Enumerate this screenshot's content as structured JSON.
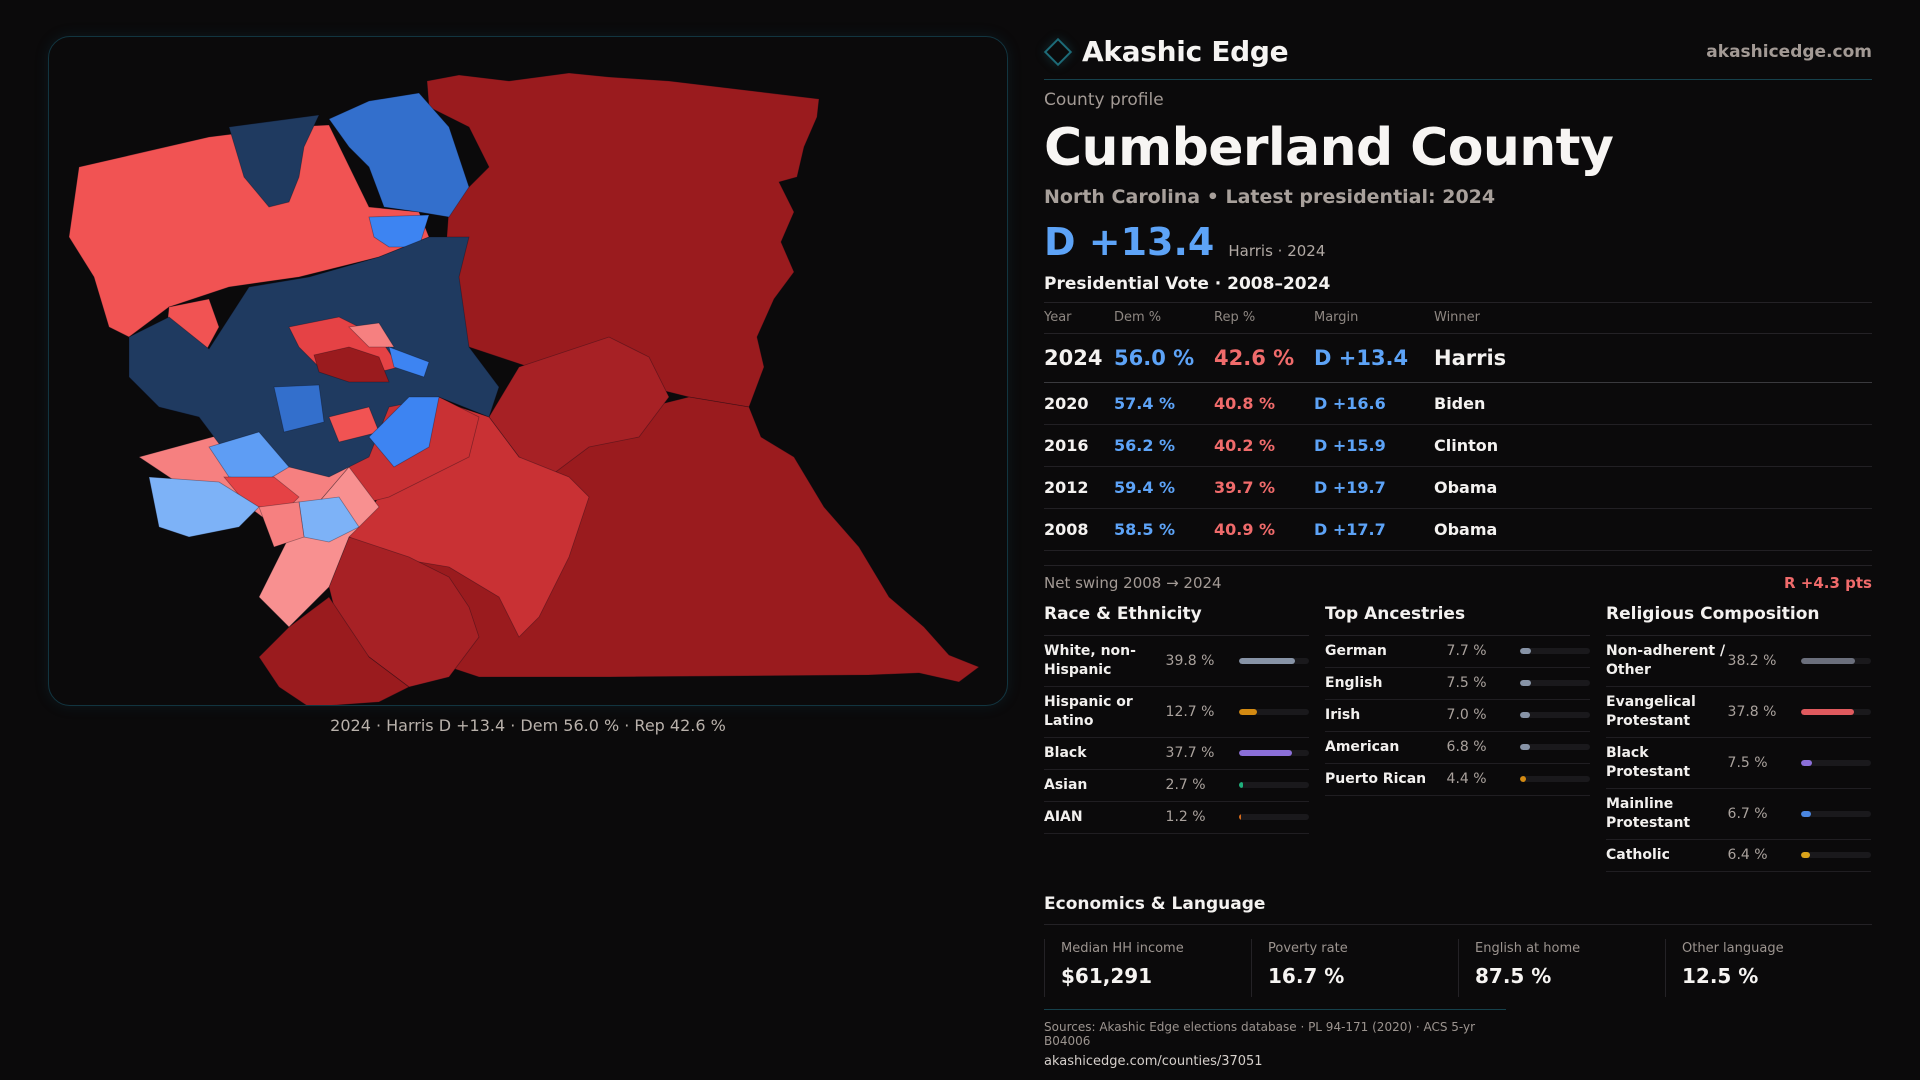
{
  "brand": {
    "name": "Akashic Edge",
    "url": "akashicedge.com"
  },
  "profile": {
    "kicker": "County profile",
    "title": "Cumberland County",
    "subtitle": "North Carolina • Latest presidential: 2024",
    "headline_margin": "D +13.4",
    "headline_sub": "Harris · 2024"
  },
  "map": {
    "caption": "2024 · Harris D +13.4 · Dem 56.0 % · Rep 42.6 %",
    "colors": {
      "safe_r": "#9a1b1e",
      "likely_r": "#a72125",
      "lean_r": "#c93134",
      "tilt_r": "#e54245",
      "light_r": "#f15353",
      "pale_r": "#f68080",
      "palest_r": "#f89090",
      "safe_d": "#1f3a60",
      "likely_d": "#2d5ba8",
      "lean_d": "#336fcc",
      "tilt_d": "#3d84f2",
      "light_d": "#5e9df4",
      "pale_d": "#7db2f7"
    }
  },
  "votes": {
    "title": "Presidential Vote · 2008–2024",
    "headers": [
      "Year",
      "Dem %",
      "Rep %",
      "Margin",
      "Winner"
    ],
    "rows": [
      {
        "year": "2024",
        "dem": "56.0 %",
        "rep": "42.6 %",
        "margin": "D +13.4",
        "winner": "Harris"
      },
      {
        "year": "2020",
        "dem": "57.4 %",
        "rep": "40.8 %",
        "margin": "D +16.6",
        "winner": "Biden"
      },
      {
        "year": "2016",
        "dem": "56.2 %",
        "rep": "40.2 %",
        "margin": "D +15.9",
        "winner": "Clinton"
      },
      {
        "year": "2012",
        "dem": "59.4 %",
        "rep": "39.7 %",
        "margin": "D +19.7",
        "winner": "Obama"
      },
      {
        "year": "2008",
        "dem": "58.5 %",
        "rep": "40.9 %",
        "margin": "D +17.7",
        "winner": "Obama"
      }
    ],
    "swing_label": "Net swing 2008 → 2024",
    "swing_value": "R +4.3 pts"
  },
  "race": {
    "title": "Race & Ethnicity",
    "items": [
      {
        "label": "White, non-Hispanic",
        "value": "39.8 %",
        "pct": 39.8,
        "color": "#8793a6"
      },
      {
        "label": "Hispanic or Latino",
        "value": "12.7 %",
        "pct": 12.7,
        "color": "#d38a12"
      },
      {
        "label": "Black",
        "value": "37.7 %",
        "pct": 37.7,
        "color": "#8b6fd8"
      },
      {
        "label": "Asian",
        "value": "2.7 %",
        "pct": 2.7,
        "color": "#1fb07c"
      },
      {
        "label": "AIAN",
        "value": "1.2 %",
        "pct": 1.2,
        "color": "#d66a1a"
      }
    ]
  },
  "ancestry": {
    "title": "Top Ancestries",
    "items": [
      {
        "label": "German",
        "value": "7.7 %",
        "pct": 7.7,
        "color": "#8793a6"
      },
      {
        "label": "English",
        "value": "7.5 %",
        "pct": 7.5,
        "color": "#8793a6"
      },
      {
        "label": "Irish",
        "value": "7.0 %",
        "pct": 7.0,
        "color": "#8793a6"
      },
      {
        "label": "American",
        "value": "6.8 %",
        "pct": 6.8,
        "color": "#8793a6"
      },
      {
        "label": "Puerto Rican",
        "value": "4.4 %",
        "pct": 4.4,
        "color": "#d38a12"
      }
    ]
  },
  "religion": {
    "title": "Religious Composition",
    "items": [
      {
        "label": "Non-adherent / Other",
        "value": "38.2 %",
        "pct": 38.2,
        "color": "#6b6f7c"
      },
      {
        "label": "Evangelical Protestant",
        "value": "37.8 %",
        "pct": 37.8,
        "color": "#e05a5e"
      },
      {
        "label": "Black Protestant",
        "value": "7.5 %",
        "pct": 7.5,
        "color": "#8b6fd8"
      },
      {
        "label": "Mainline Protestant",
        "value": "6.7 %",
        "pct": 6.7,
        "color": "#4a86e0"
      },
      {
        "label": "Catholic",
        "value": "6.4 %",
        "pct": 6.4,
        "color": "#d9a21a"
      }
    ]
  },
  "economics": {
    "title": "Economics & Language",
    "cells": [
      {
        "label": "Median HH income",
        "value": "$61,291"
      },
      {
        "label": "Poverty rate",
        "value": "16.7 %"
      },
      {
        "label": "English at home",
        "value": "87.5 %"
      },
      {
        "label": "Other language",
        "value": "12.5 %"
      }
    ]
  },
  "footer": {
    "sources": "Sources: Akashic Edge elections database · PL 94-171 (2020) · ACS 5-yr B04006",
    "permalink": "akashicedge.com/counties/37051"
  }
}
